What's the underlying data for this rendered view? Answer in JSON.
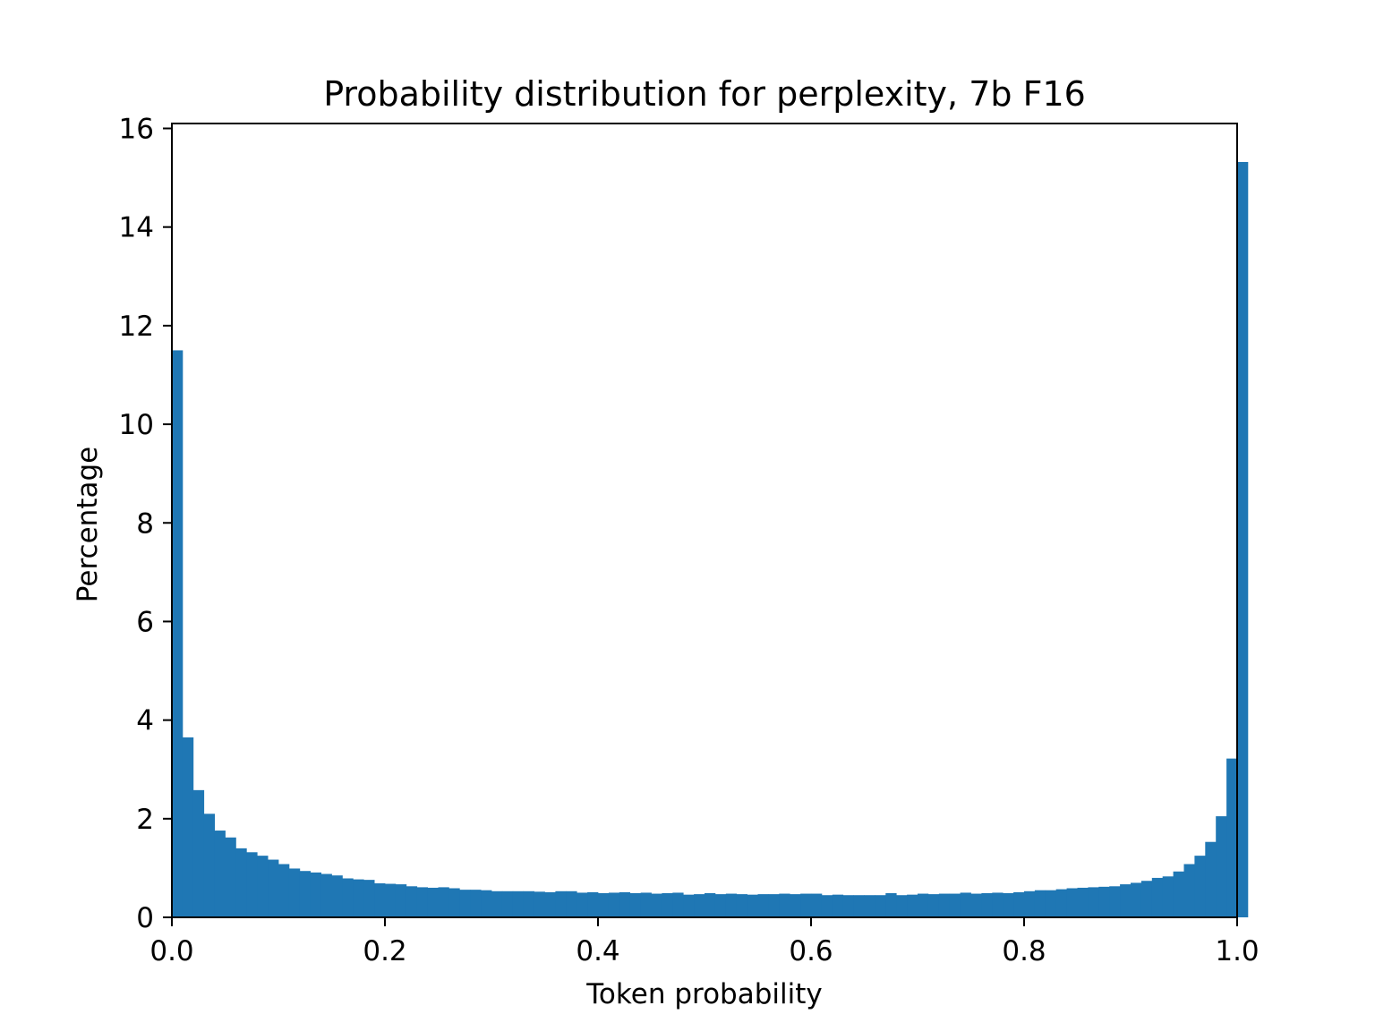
{
  "chart_data": {
    "type": "bar",
    "title": "Probability distribution for perplexity, 7b F16",
    "xlabel": "Token probability",
    "ylabel": "Percentage",
    "xlim": [
      0.0,
      1.0
    ],
    "ylim": [
      0,
      16.1
    ],
    "xticks": [
      "0.0",
      "0.2",
      "0.4",
      "0.6",
      "0.8",
      "1.0"
    ],
    "xtick_values": [
      0.0,
      0.2,
      0.4,
      0.6,
      0.8,
      1.0
    ],
    "yticks": [
      "0",
      "2",
      "4",
      "6",
      "8",
      "10",
      "12",
      "14",
      "16"
    ],
    "ytick_values": [
      0,
      2,
      4,
      6,
      8,
      10,
      12,
      14,
      16
    ],
    "grid": false,
    "bar_color": "#1f77b4",
    "bin_width": 0.01,
    "values": [
      11.5,
      3.65,
      2.58,
      2.1,
      1.76,
      1.62,
      1.4,
      1.32,
      1.25,
      1.17,
      1.08,
      0.99,
      0.94,
      0.91,
      0.88,
      0.85,
      0.79,
      0.77,
      0.76,
      0.69,
      0.68,
      0.67,
      0.63,
      0.61,
      0.6,
      0.61,
      0.59,
      0.56,
      0.56,
      0.55,
      0.53,
      0.53,
      0.53,
      0.53,
      0.52,
      0.51,
      0.53,
      0.53,
      0.5,
      0.51,
      0.49,
      0.5,
      0.51,
      0.49,
      0.5,
      0.48,
      0.49,
      0.5,
      0.46,
      0.47,
      0.49,
      0.47,
      0.48,
      0.47,
      0.46,
      0.47,
      0.47,
      0.48,
      0.47,
      0.48,
      0.48,
      0.45,
      0.46,
      0.45,
      0.45,
      0.45,
      0.45,
      0.49,
      0.45,
      0.46,
      0.48,
      0.47,
      0.48,
      0.48,
      0.5,
      0.48,
      0.49,
      0.5,
      0.49,
      0.51,
      0.53,
      0.55,
      0.55,
      0.57,
      0.59,
      0.6,
      0.61,
      0.62,
      0.63,
      0.67,
      0.7,
      0.74,
      0.8,
      0.83,
      0.93,
      1.08,
      1.25,
      1.53,
      2.05,
      3.22
    ],
    "last_bin_value": 15.32
  }
}
